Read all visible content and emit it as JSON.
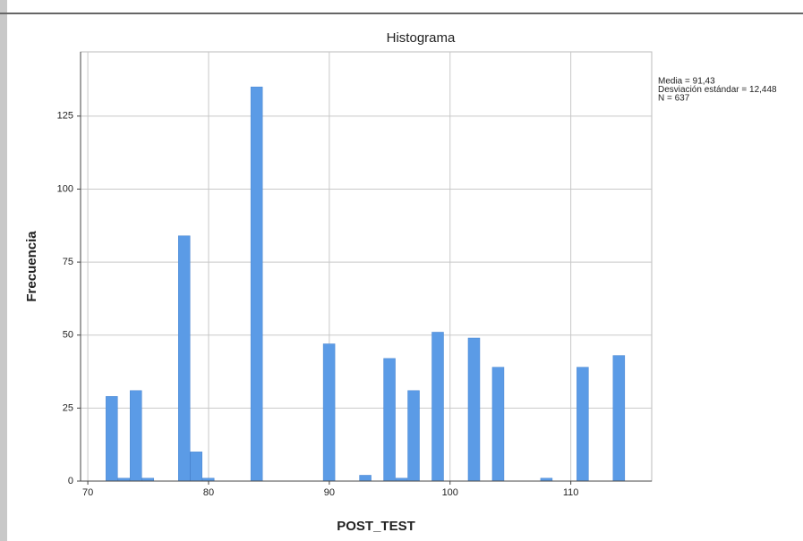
{
  "chart_data": {
    "type": "histogram",
    "title": "Histograma",
    "xlabel": "POST_TEST",
    "ylabel": "Frecuencia",
    "annotations": [
      "Media = 91,43",
      "Desviación estándar = 12,448",
      "N = 637"
    ],
    "bins": [
      71.5,
      72.5,
      73.5,
      74.5,
      75.5,
      76.5,
      77.5,
      78.5,
      79.5,
      80.5,
      81.5,
      82.5,
      83.5,
      84.5,
      85.5,
      86.5,
      87.5,
      88.5,
      89.5,
      90.5,
      91.5,
      92.5,
      93.5,
      94.5,
      95.5,
      96.5,
      97.5,
      98.5,
      99.5,
      100.5,
      101.5,
      102.5,
      103.5,
      104.5,
      105.5,
      106.5,
      107.5,
      108.5,
      109.5,
      110.5,
      111.5,
      112.5,
      113.5,
      114.5
    ],
    "values": [
      29,
      1,
      31,
      1,
      0,
      0,
      84,
      10,
      1,
      0,
      0,
      0,
      135,
      0,
      0,
      0,
      0,
      0,
      47,
      0,
      0,
      2,
      0,
      42,
      1,
      31,
      0,
      51,
      0,
      0,
      49,
      0,
      39,
      0,
      0,
      0,
      1,
      0,
      0,
      39,
      0,
      0,
      43
    ],
    "color": "#5b9be6",
    "xlim": [
      69.4,
      116.7
    ],
    "xticks": [
      70,
      80,
      90,
      100,
      110
    ],
    "ylim": [
      0,
      147
    ],
    "yticks": [
      0,
      25,
      50,
      75,
      100,
      125
    ],
    "grid": true
  }
}
